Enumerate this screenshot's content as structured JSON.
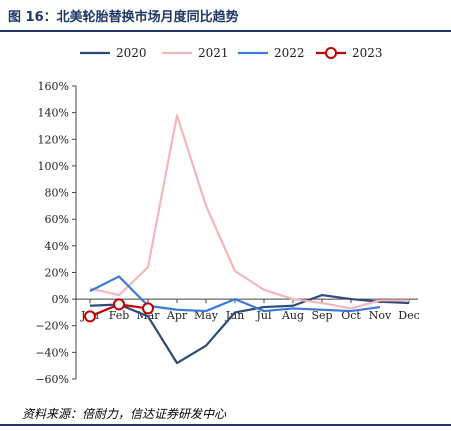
{
  "header": {
    "title": "图 16：北美轮胎替换市场月度同比趋势"
  },
  "footer": {
    "source": "资料来源：倍耐力，信达证券研发中心"
  },
  "chart_data": {
    "type": "line",
    "title": "",
    "xlabel": "",
    "ylabel": "",
    "categories": [
      "Jan",
      "Feb",
      "Mar",
      "Apr",
      "May",
      "Jun",
      "Jul",
      "Aug",
      "Sep",
      "Oct",
      "Nov",
      "Dec"
    ],
    "ylim": [
      -60,
      160
    ],
    "yticks": [
      -60,
      -40,
      -20,
      0,
      20,
      40,
      60,
      80,
      100,
      120,
      140,
      160
    ],
    "ytick_labels": [
      "−60%",
      "−40%",
      "−20%",
      "0%",
      "20%",
      "40%",
      "60%",
      "80%",
      "100%",
      "120%",
      "140%",
      "160%"
    ],
    "grid": false,
    "legend_position": "top",
    "series": [
      {
        "name": "2020",
        "color": "#2e4a7a",
        "marker": "none",
        "values": [
          -5,
          -4,
          -13,
          -48,
          -35,
          -10,
          -6,
          -5,
          3,
          0,
          -2,
          -3
        ]
      },
      {
        "name": "2021",
        "color": "#f4b6bd",
        "marker": "none",
        "values": [
          8,
          3,
          24,
          138,
          70,
          21,
          7,
          0,
          -3,
          -7,
          -1,
          -1
        ]
      },
      {
        "name": "2022",
        "color": "#3a7bd5",
        "marker": "none",
        "values": [
          6,
          17,
          -5,
          -8,
          -9,
          0,
          -9,
          -7,
          -8,
          -9,
          -6,
          null
        ]
      },
      {
        "name": "2023",
        "color": "#c00000",
        "marker": "circle",
        "values": [
          -13,
          -4,
          -7,
          null,
          null,
          null,
          null,
          null,
          null,
          null,
          null,
          null
        ]
      }
    ]
  }
}
